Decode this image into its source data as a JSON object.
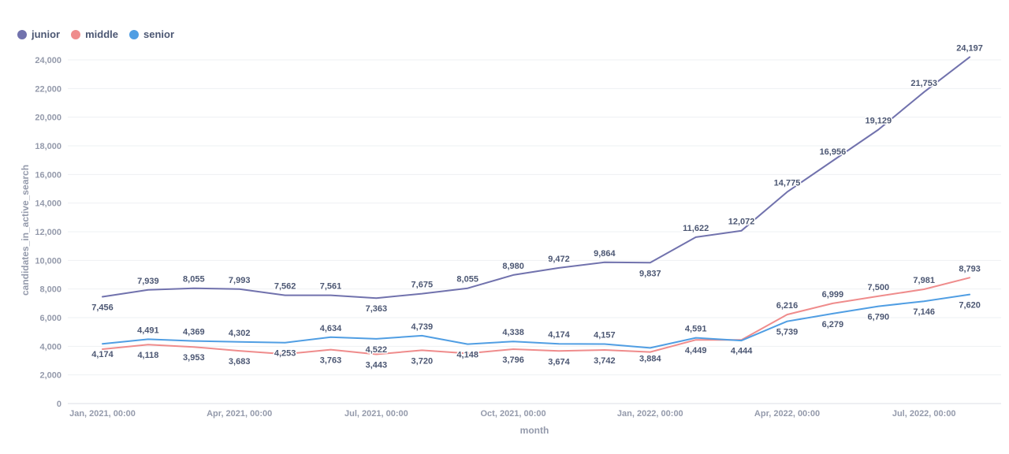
{
  "legend": [
    {
      "name": "junior",
      "color": "#7172ad"
    },
    {
      "name": "middle",
      "color": "#ef8c8c"
    },
    {
      "name": "senior",
      "color": "#509ee3"
    }
  ],
  "chart_data": {
    "type": "line",
    "xlabel": "month",
    "ylabel": "candidates_in_active_search",
    "ylim": [
      0,
      24000
    ],
    "y_ticks": [
      "0",
      "2,000",
      "4,000",
      "6,000",
      "8,000",
      "10,000",
      "12,000",
      "14,000",
      "16,000",
      "18,000",
      "20,000",
      "22,000",
      "24,000"
    ],
    "x_tick_labels": [
      {
        "index": 0,
        "label": "Jan, 2021, 00:00"
      },
      {
        "index": 3,
        "label": "Apr, 2021, 00:00"
      },
      {
        "index": 6,
        "label": "Jul, 2021, 00:00"
      },
      {
        "index": 9,
        "label": "Oct, 2021, 00:00"
      },
      {
        "index": 12,
        "label": "Jan, 2022, 00:00"
      },
      {
        "index": 15,
        "label": "Apr, 2022, 00:00"
      },
      {
        "index": 18,
        "label": "Jul, 2022, 00:00"
      }
    ],
    "x": [
      "2021-01",
      "2021-02",
      "2021-03",
      "2021-04",
      "2021-05",
      "2021-06",
      "2021-07",
      "2021-08",
      "2021-09",
      "2021-10",
      "2021-11",
      "2021-12",
      "2022-01",
      "2022-02",
      "2022-03",
      "2022-04",
      "2022-05",
      "2022-06",
      "2022-07",
      "2022-08"
    ],
    "grid": "horizontal",
    "legend_position": "top-left",
    "series": [
      {
        "name": "junior",
        "color": "#7172ad",
        "values": [
          7456,
          7939,
          8055,
          7993,
          7562,
          7561,
          7363,
          7675,
          8055,
          8980,
          9472,
          9864,
          9837,
          11622,
          12072,
          14775,
          16956,
          19129,
          21753,
          24197
        ],
        "labels": [
          "7,456",
          "7,939",
          "8,055",
          "7,993",
          "7,562",
          "7,561",
          "7,363",
          "7,675",
          "8,055",
          "8,980",
          "9,472",
          "9,864",
          "9,837",
          "11,622",
          "12,072",
          "14,775",
          "16,956",
          "19,129",
          "21,753",
          "24,197"
        ],
        "label_pos": [
          "below",
          "above",
          "above",
          "above",
          "above",
          "above",
          "below",
          "above",
          "above",
          "above",
          "above",
          "above",
          "below",
          "above",
          "above",
          "above",
          "above",
          "above",
          "above",
          "above"
        ]
      },
      {
        "name": "middle",
        "color": "#ef8c8c",
        "values": [
          3800,
          4118,
          3953,
          3683,
          3450,
          3763,
          3443,
          3720,
          3500,
          3796,
          3674,
          3742,
          3600,
          4449,
          4444,
          6216,
          6999,
          7500,
          7981,
          8793
        ],
        "labels": [
          "",
          "4,118",
          "3,953",
          "3,683",
          "",
          "3,763",
          "3,443",
          "3,720",
          "",
          "3,796",
          "3,674",
          "3,742",
          "",
          "4,449",
          "4,444",
          "6,216",
          "6,999",
          "7,500",
          "7,981",
          "8,793"
        ],
        "label_pos": [
          "below",
          "below",
          "below",
          "below",
          "below",
          "below",
          "below",
          "below",
          "below",
          "below",
          "below",
          "below",
          "below",
          "below",
          "below",
          "above",
          "above",
          "above",
          "above",
          "above"
        ]
      },
      {
        "name": "senior",
        "color": "#509ee3",
        "values": [
          4174,
          4491,
          4369,
          4302,
          4253,
          4634,
          4522,
          4739,
          4148,
          4338,
          4174,
          4157,
          3884,
          4591,
          4400,
          5739,
          6279,
          6790,
          7146,
          7620
        ],
        "labels": [
          "4,174",
          "4,491",
          "4,369",
          "4,302",
          "4,253",
          "4,634",
          "4,522",
          "4,739",
          "4,148",
          "4,338",
          "4,174",
          "4,157",
          "3,884",
          "4,591",
          "",
          "5,739",
          "6,279",
          "6,790",
          "7,146",
          "7,620"
        ],
        "label_pos": [
          "below",
          "above",
          "above",
          "above",
          "below",
          "above",
          "below",
          "above",
          "below",
          "above",
          "above",
          "above",
          "below",
          "above",
          "above",
          "below",
          "below",
          "below",
          "below",
          "below"
        ]
      }
    ]
  }
}
